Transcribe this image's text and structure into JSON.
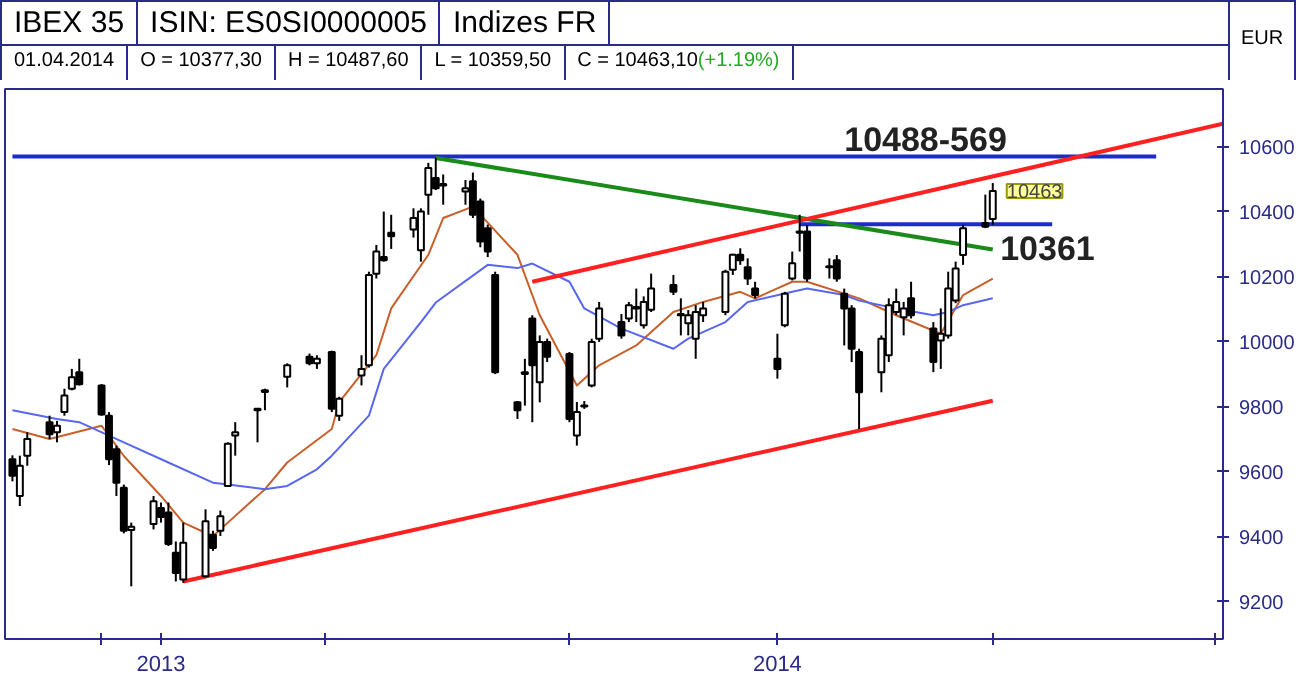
{
  "chart_data": {
    "type": "candlestick",
    "title": "IBEX 35",
    "subtitle": "ISIN: ES0SI0000005",
    "ylabel": "EUR",
    "annotations": [
      "Indizes FR",
      "01.04.2014",
      "O = 10377,30",
      "H = 10487,60",
      "L = 10359,50",
      "C = 10463,10",
      "(+1.19%)",
      {
        "text": "10488-569",
        "x": "2014-03-12",
        "y": 10569
      },
      {
        "text": "10361",
        "x": "2014-04-02",
        "y": 10361
      },
      {
        "text": "10463",
        "x": "2014-04-01",
        "y": 10463
      }
    ],
    "x": [
      "2013-11-20",
      "2013-11-21",
      "2013-11-22",
      "2013-11-25",
      "2013-11-26",
      "2013-11-27",
      "2013-11-28",
      "2013-11-29",
      "2013-12-02",
      "2013-12-03",
      "2013-12-04",
      "2013-12-05",
      "2013-12-06",
      "2013-12-09",
      "2013-12-10",
      "2013-12-11",
      "2013-12-12",
      "2013-12-13",
      "2013-12-16",
      "2013-12-17",
      "2013-12-18",
      "2013-12-19",
      "2013-12-20",
      "2013-12-23",
      "2013-12-24",
      "2013-12-27",
      "2013-12-30",
      "2013-12-31",
      "2014-01-02",
      "2014-01-03",
      "2014-01-06",
      "2014-01-07",
      "2014-01-08",
      "2014-01-09",
      "2014-01-10",
      "2014-01-13",
      "2014-01-14",
      "2014-01-15",
      "2014-01-16",
      "2014-01-17",
      "2014-01-20",
      "2014-01-21",
      "2014-01-22",
      "2014-01-23",
      "2014-01-24",
      "2014-01-27",
      "2014-01-28",
      "2014-01-29",
      "2014-01-30",
      "2014-01-31",
      "2014-02-03",
      "2014-02-04",
      "2014-02-05",
      "2014-02-06",
      "2014-02-07",
      "2014-02-10",
      "2014-02-11",
      "2014-02-12",
      "2014-02-13",
      "2014-02-14",
      "2014-02-17",
      "2014-02-18",
      "2014-02-19",
      "2014-02-20",
      "2014-02-21",
      "2014-02-24",
      "2014-02-25",
      "2014-02-26",
      "2014-02-27",
      "2014-02-28",
      "2014-03-03",
      "2014-03-04",
      "2014-03-05",
      "2014-03-06",
      "2014-03-07",
      "2014-03-10",
      "2014-03-11",
      "2014-03-12",
      "2014-03-13",
      "2014-03-14",
      "2014-03-17",
      "2014-03-18",
      "2014-03-19",
      "2014-03-20",
      "2014-03-21",
      "2014-03-24",
      "2014-03-25",
      "2014-03-26",
      "2014-03-27",
      "2014-03-28",
      "2014-03-31",
      "2014-04-01"
    ],
    "ohlc": [
      [
        9638,
        9650,
        9570,
        9587
      ],
      [
        9525,
        9649,
        9494,
        9618
      ],
      [
        9649,
        9721,
        9618,
        9700
      ],
      [
        9752,
        9772,
        9700,
        9715
      ],
      [
        9721,
        9756,
        9690,
        9741
      ],
      [
        9783,
        9855,
        9772,
        9834
      ],
      [
        9855,
        9916,
        9850,
        9890
      ],
      [
        9906,
        9947,
        9865,
        9869
      ],
      [
        9865,
        9869,
        9772,
        9776
      ],
      [
        9772,
        9783,
        9620,
        9638
      ],
      [
        9669,
        9680,
        9525,
        9566
      ],
      [
        9550,
        9560,
        9410,
        9418
      ],
      [
        9420,
        9443,
        9247,
        9430
      ],
      [
        9439,
        9525,
        9422,
        9509
      ],
      [
        9488,
        9505,
        9443,
        9460
      ],
      [
        9474,
        9505,
        9371,
        9377
      ],
      [
        9350,
        9385,
        9262,
        9288
      ],
      [
        9268,
        9443,
        9258,
        9381
      ],
      [
        9278,
        9484,
        9274,
        9447
      ],
      [
        9406,
        9418,
        9356,
        9365
      ],
      [
        9418,
        9480,
        9402,
        9463
      ],
      [
        9556,
        9690,
        9554,
        9686
      ],
      [
        9711,
        9752,
        9649,
        9721
      ],
      [
        9789,
        9793,
        9690,
        9793
      ],
      [
        9845,
        9855,
        9789,
        9850
      ],
      [
        9892,
        9933,
        9859,
        9927
      ],
      [
        9953,
        9963,
        9927,
        9933
      ],
      [
        9933,
        9958,
        9916,
        9947
      ],
      [
        9968,
        9972,
        9783,
        9793
      ],
      [
        9772,
        9830,
        9756,
        9824
      ],
      [
        9896,
        9958,
        9865,
        9916
      ],
      [
        9927,
        10215,
        9920,
        10205
      ],
      [
        10209,
        10297,
        10194,
        10277
      ],
      [
        10260,
        10400,
        10246,
        10250
      ],
      [
        10335,
        10390,
        10285,
        10324
      ],
      [
        10345,
        10410,
        10320,
        10380
      ],
      [
        10281,
        10410,
        10246,
        10400
      ],
      [
        10452,
        10550,
        10390,
        10534
      ],
      [
        10503,
        10565,
        10466,
        10472
      ],
      [
        10485,
        10514,
        10421,
        10480
      ],
      [
        10462,
        10497,
        10421,
        10472
      ],
      [
        10493,
        10520,
        10380,
        10390
      ],
      [
        10431,
        10440,
        10290,
        10308
      ],
      [
        10349,
        10360,
        10260,
        10277
      ],
      [
        10205,
        10215,
        9900,
        9906
      ],
      [
        9813,
        9817,
        9762,
        9789
      ],
      [
        9900,
        9947,
        9803,
        9906
      ],
      [
        10071,
        10081,
        9752,
        9927
      ],
      [
        9875,
        10019,
        9813,
        9999
      ],
      [
        9999,
        10009,
        9937,
        9953
      ],
      [
        9962,
        9968,
        9752,
        9762
      ],
      [
        9711,
        9814,
        9680,
        9783
      ],
      [
        9800,
        9817,
        9793,
        9803
      ],
      [
        9865,
        10009,
        9859,
        9999
      ],
      [
        10009,
        10122,
        9999,
        10102
      ],
      [
        10060,
        10085,
        10009,
        10019
      ],
      [
        10071,
        10122,
        10060,
        10112
      ],
      [
        10106,
        10163,
        10060,
        10102
      ],
      [
        10050,
        10139,
        10040,
        10122
      ],
      [
        10098,
        10209,
        10091,
        10163
      ],
      [
        10174,
        10205,
        10143,
        10153
      ],
      [
        10081,
        10133,
        10019,
        10085
      ],
      [
        10056,
        10097,
        10019,
        10081
      ],
      [
        10009,
        10112,
        9947,
        10091
      ],
      [
        10081,
        10122,
        10060,
        10102
      ],
      [
        10091,
        10221,
        10081,
        10215
      ],
      [
        10221,
        10270,
        10205,
        10267
      ],
      [
        10267,
        10287,
        10236,
        10250
      ],
      [
        10229,
        10256,
        10174,
        10194
      ],
      [
        10163,
        10184,
        10133,
        10143
      ],
      [
        9947,
        10024,
        9886,
        9916
      ],
      [
        10050,
        10153,
        10044,
        10147
      ],
      [
        10194,
        10277,
        10188,
        10241
      ],
      [
        10335,
        10390,
        10277,
        10339
      ],
      [
        10339,
        10359,
        10184,
        10194
      ],
      [
        10229,
        10256,
        10194,
        10232
      ],
      [
        10250,
        10266,
        10184,
        10194
      ],
      [
        10147,
        10163,
        9988,
        10102
      ],
      [
        10102,
        10112,
        9937,
        9978
      ],
      [
        9968,
        9978,
        9731,
        9844
      ],
      [
        9906,
        10019,
        9844,
        10009
      ],
      [
        9958,
        10133,
        9937,
        10112
      ],
      [
        10091,
        10163,
        10081,
        10122
      ],
      [
        10075,
        10122,
        10019,
        10102
      ],
      [
        10133,
        10184,
        10071,
        10081
      ],
      [
        10040,
        10060,
        9906,
        9937
      ],
      [
        10003,
        10102,
        9916,
        10024
      ],
      [
        10019,
        10215,
        10009,
        10163
      ],
      [
        10126,
        10246,
        10118,
        10225
      ],
      [
        10266,
        10359,
        10236,
        10349
      ],
      [
        10365,
        10452,
        10349,
        10353
      ],
      [
        10377.3,
        10487.6,
        10359.5,
        10463.1
      ]
    ],
    "series": [
      {
        "type": "line",
        "color": "#c8602a",
        "x": [
          "2013-11-20",
          "2013-11-25",
          "2013-12-02",
          "2013-12-05",
          "2013-12-10",
          "2013-12-13",
          "2013-12-17",
          "2013-12-19",
          "2013-12-24",
          "2013-12-27",
          "2014-01-02",
          "2014-01-03",
          "2014-01-08",
          "2014-01-10",
          "2014-01-15",
          "2014-01-17",
          "2014-01-21",
          "2014-01-27",
          "2014-01-30",
          "2014-02-04",
          "2014-02-07",
          "2014-02-12",
          "2014-02-17",
          "2014-02-21",
          "2014-02-26",
          "2014-02-28",
          "2014-03-05",
          "2014-03-07",
          "2014-03-14",
          "2014-03-19",
          "2014-03-25",
          "2014-03-28",
          "2014-04-01"
        ],
        "values": [
          9731,
          9700,
          9741,
          9648,
          9525,
          9443,
          9401,
          9443,
          9546,
          9628,
          9731,
          9814,
          9958,
          10102,
          10267,
          10380,
          10415,
          10267,
          10081,
          9865,
          9927,
          9988,
          10091,
          10122,
          10153,
          10133,
          10184,
          10184,
          10133,
          10081,
          10024,
          10143,
          10194
        ]
      },
      {
        "type": "line",
        "color": "#5866f0",
        "x": [
          "2013-11-20",
          "2013-11-26",
          "2013-11-29",
          "2013-12-05",
          "2013-12-11",
          "2013-12-17",
          "2013-12-19",
          "2013-12-24",
          "2013-12-27",
          "2013-12-31",
          "2014-01-02",
          "2014-01-07",
          "2014-01-09",
          "2014-01-14",
          "2014-01-16",
          "2014-01-23",
          "2014-01-27",
          "2014-01-29",
          "2014-02-03",
          "2014-02-05",
          "2014-02-10",
          "2014-02-17",
          "2014-02-19",
          "2014-02-24",
          "2014-02-27",
          "2014-03-05",
          "2014-03-07",
          "2014-03-12",
          "2014-03-14",
          "2014-03-19",
          "2014-03-24",
          "2014-03-26",
          "2014-03-28",
          "2014-04-01"
        ],
        "values": [
          9789,
          9762,
          9752,
          9690,
          9628,
          9566,
          9560,
          9546,
          9556,
          9607,
          9649,
          9772,
          9916,
          10060,
          10120,
          10236,
          10226,
          10240,
          10184,
          10102,
          10040,
          9978,
          10009,
          10060,
          10122,
          10153,
          10163,
          10143,
          10126,
          10102,
          10081,
          10091,
          10112,
          10133
        ]
      },
      {
        "type": "line",
        "color": "#1c2cc8",
        "x": [
          "2013-11-20",
          "2014-04-23"
        ],
        "values": [
          10569,
          10569
        ]
      },
      {
        "type": "line",
        "color": "#1c2cc8",
        "x": [
          "2014-03-06",
          "2014-04-09"
        ],
        "values": [
          10361,
          10361
        ]
      },
      {
        "type": "line",
        "color": "#1a8a1a",
        "x": [
          "2014-01-16",
          "2014-04-01"
        ],
        "values": [
          10565,
          10283
        ]
      },
      {
        "type": "line",
        "color": "#ff2020",
        "x": [
          "2014-01-29",
          "2014-05-02"
        ],
        "values": [
          10184,
          10670
        ]
      },
      {
        "type": "line",
        "color": "#ff2020",
        "x": [
          "2013-12-13",
          "2014-04-01"
        ],
        "values": [
          9262,
          9818
        ]
      }
    ],
    "xlim": [
      "2013-11-19",
      "2014-05-02"
    ],
    "xticks": [
      {
        "value": "2013-12-02",
        "label": null
      },
      {
        "value": "2013-12-10",
        "label": "2013"
      },
      {
        "value": "2014-01-01",
        "label": null
      },
      {
        "value": "2014-02-03",
        "label": null
      },
      {
        "value": "2014-03-03",
        "label": "2014"
      },
      {
        "value": "2014-04-01",
        "label": null
      },
      {
        "value": "2014-05-01",
        "label": null
      }
    ],
    "ylim": [
      9085,
      10777
    ],
    "yticks": [
      9200,
      9400,
      9600,
      9800,
      10000,
      10200,
      10400,
      10600
    ]
  }
}
